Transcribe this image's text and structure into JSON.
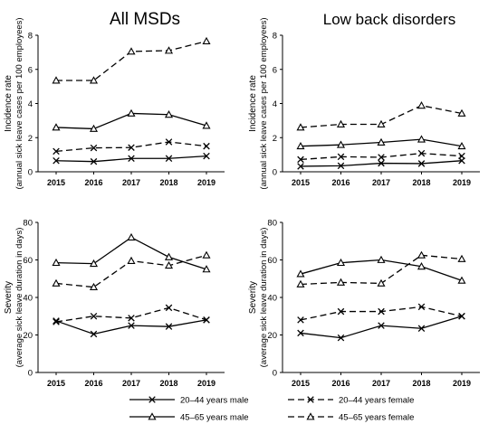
{
  "colors": {
    "line": "#000000",
    "background": "#ffffff"
  },
  "column_titles": [
    "All MSDs",
    "Low back disorders"
  ],
  "chart_data": [
    {
      "type": "line",
      "title": "All MSDs",
      "ylabel_lines": [
        "Incidence rate",
        "(annual sick leave cases per 100 employees)"
      ],
      "x": [
        "2015",
        "2016",
        "2017",
        "2018",
        "2019"
      ],
      "ylim": [
        0,
        8
      ],
      "yticks": [
        0,
        2,
        4,
        6,
        8
      ],
      "series": [
        {
          "name": "20–44 years male",
          "values": [
            0.65,
            0.6,
            0.78,
            0.78,
            0.92
          ]
        },
        {
          "name": "20–44 years female",
          "values": [
            1.2,
            1.4,
            1.42,
            1.75,
            1.5
          ]
        },
        {
          "name": "45–65 years male",
          "values": [
            2.6,
            2.52,
            3.42,
            3.35,
            2.7
          ]
        },
        {
          "name": "45–65 years female",
          "values": [
            5.35,
            5.35,
            7.05,
            7.1,
            7.65
          ]
        }
      ]
    },
    {
      "type": "line",
      "title": "Low back disorders",
      "ylabel_lines": [
        "Incidence rate",
        "(annual sick leave cases per 100 employees)"
      ],
      "x": [
        "2015",
        "2016",
        "2017",
        "2018",
        "2019"
      ],
      "ylim": [
        0,
        8
      ],
      "yticks": [
        0,
        2,
        4,
        6,
        8
      ],
      "series": [
        {
          "name": "20–44 years male",
          "values": [
            0.32,
            0.35,
            0.5,
            0.48,
            0.65
          ]
        },
        {
          "name": "20–44 years female",
          "values": [
            0.72,
            0.88,
            0.85,
            1.08,
            0.92
          ]
        },
        {
          "name": "45–65 years male",
          "values": [
            1.5,
            1.58,
            1.72,
            1.9,
            1.5
          ]
        },
        {
          "name": "45–65 years female",
          "values": [
            2.6,
            2.78,
            2.78,
            3.88,
            3.42
          ]
        }
      ]
    },
    {
      "type": "line",
      "title": "",
      "ylabel_lines": [
        "Severity",
        "(average sick leave duration in days)"
      ],
      "x": [
        "2015",
        "2016",
        "2017",
        "2018",
        "2019"
      ],
      "ylim": [
        0,
        80
      ],
      "yticks": [
        0,
        20,
        40,
        60,
        80
      ],
      "series": [
        {
          "name": "20–44 years male",
          "values": [
            27.5,
            20.5,
            25,
            24.5,
            28
          ]
        },
        {
          "name": "20–44 years female",
          "values": [
            27,
            30,
            29,
            34.5,
            28
          ]
        },
        {
          "name": "45–65 years male",
          "values": [
            58.5,
            58,
            72,
            61.5,
            55
          ]
        },
        {
          "name": "45–65 years female",
          "values": [
            47.5,
            45.5,
            59.5,
            57,
            62.5
          ]
        }
      ]
    },
    {
      "type": "line",
      "title": "",
      "ylabel_lines": [
        "Severity",
        "(average sick leave duration in days)"
      ],
      "x": [
        "2015",
        "2016",
        "2017",
        "2018",
        "2019"
      ],
      "ylim": [
        0,
        80
      ],
      "yticks": [
        0,
        20,
        40,
        60,
        80
      ],
      "series": [
        {
          "name": "20–44 years male",
          "values": [
            21,
            18.5,
            25,
            23.5,
            30
          ]
        },
        {
          "name": "20–44 years female",
          "values": [
            28,
            32.5,
            32.5,
            35,
            30
          ]
        },
        {
          "name": "45–65 years male",
          "values": [
            52.5,
            58.5,
            60,
            56.5,
            49
          ]
        },
        {
          "name": "45–65 years female",
          "values": [
            47,
            48,
            47.5,
            62.5,
            60.5
          ]
        }
      ]
    }
  ],
  "legend": {
    "items": [
      {
        "label": "20–44 years male",
        "dash": "solid",
        "marker": "x"
      },
      {
        "label": "20–44 years female",
        "dash": "dashed",
        "marker": "x"
      },
      {
        "label": "45–65 years male",
        "dash": "solid",
        "marker": "triangle"
      },
      {
        "label": "45–65 years female",
        "dash": "dashed",
        "marker": "triangle"
      }
    ]
  }
}
